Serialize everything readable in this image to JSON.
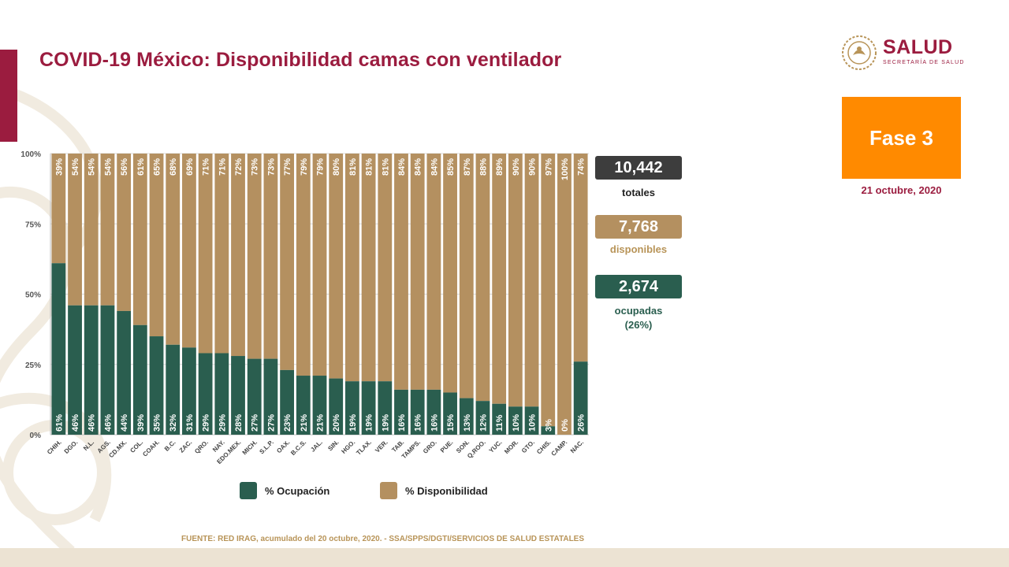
{
  "slide": {
    "title": "COVID-19 México: Disponibilidad camas con ventilador",
    "phase": "Fase 3",
    "date": "21 octubre, 2020",
    "source": "FUENTE: RED IRAG, acumulado del 20 octubre, 2020. -  SSA/SPPS/DGTI/SERVICIOS DE SALUD ESTATALES"
  },
  "logo": {
    "name": "SALUD",
    "subtitle": "SECRETARÍA DE SALUD"
  },
  "stats": {
    "total": {
      "value": "10,442",
      "label": "totales"
    },
    "available": {
      "value": "7,768",
      "label": "disponibles"
    },
    "occupied": {
      "value": "2,674",
      "label": "ocupadas",
      "sublabel": "(26%)"
    }
  },
  "legend": {
    "occupancy": "% Ocupación",
    "availability": "% Disponibilidad"
  },
  "colors": {
    "occupancy": "#2a5e4f",
    "availability": "#b49060",
    "total_box": "#3d3d3d",
    "brand": "#9b1c3f",
    "phase": "#ff8a00"
  },
  "chart_data": {
    "type": "bar",
    "stacked": true,
    "title": "COVID-19 México: Disponibilidad camas con ventilador",
    "ylim": [
      0,
      100
    ],
    "yticks": [
      0,
      25,
      50,
      75,
      100
    ],
    "ytick_labels": [
      "0%",
      "25%",
      "50%",
      "75%",
      "100%"
    ],
    "categories": [
      "CHIH.",
      "DGO.",
      "N.L.",
      "AGS.",
      "CD.MX.",
      "COL.",
      "COAH.",
      "B.C.",
      "ZAC.",
      "QRO.",
      "NAY.",
      "EDO.MEX.",
      "MICH.",
      "S.L.P.",
      "OAX.",
      "B.C.S.",
      "JAL.",
      "SIN.",
      "HGO.",
      "TLAX.",
      "VER.",
      "TAB.",
      "TAMPS.",
      "GRO.",
      "PUE.",
      "SON.",
      "Q.ROO.",
      "YUC.",
      "MOR.",
      "GTO.",
      "CHIS.",
      "CAMP.",
      "NAC."
    ],
    "series": [
      {
        "name": "% Ocupación",
        "values": [
          61,
          46,
          46,
          46,
          44,
          39,
          35,
          32,
          31,
          29,
          29,
          28,
          27,
          27,
          23,
          21,
          21,
          20,
          19,
          19,
          19,
          16,
          16,
          16,
          15,
          13,
          12,
          11,
          10,
          10,
          3,
          0,
          26
        ]
      },
      {
        "name": "% Disponibilidad",
        "values": [
          39,
          54,
          54,
          54,
          56,
          61,
          65,
          68,
          69,
          71,
          71,
          72,
          73,
          73,
          77,
          79,
          79,
          80,
          81,
          81,
          81,
          84,
          84,
          84,
          85,
          87,
          88,
          89,
          90,
          90,
          97,
          100,
          74
        ]
      }
    ],
    "occupancy_labels": [
      "61%",
      "46%",
      "46%",
      "46%",
      "44%",
      "39%",
      "35%",
      "32%",
      "31%",
      "29%",
      "29%",
      "28%",
      "27%",
      "27%",
      "23%",
      "21%",
      "21%",
      "20%",
      "19%",
      "19%",
      "19%",
      "16%",
      "16%",
      "16%",
      "15%",
      "13%",
      "12%",
      "11%",
      "10%",
      "10%",
      "3%",
      "0%",
      "26%"
    ],
    "availability_labels": [
      "39%",
      "54%",
      "54%",
      "54%",
      "56%",
      "61%",
      "65%",
      "68%",
      "69%",
      "71%",
      "71%",
      "72%",
      "73%",
      "73%",
      "77%",
      "79%",
      "79%",
      "80%",
      "81%",
      "81%",
      "81%",
      "84%",
      "84%",
      "84%",
      "85%",
      "87%",
      "88%",
      "89%",
      "90%",
      "90%",
      "97%",
      "100%",
      "74%"
    ]
  }
}
